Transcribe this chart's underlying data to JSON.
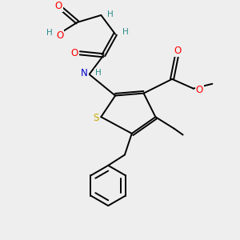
{
  "bg_color": "#eeeeee",
  "atom_colors": {
    "C": "#000000",
    "H": "#2e8b8b",
    "O": "#ff0000",
    "N": "#0000cd",
    "S": "#ccaa00"
  },
  "bond_color": "#000000",
  "bond_width": 1.4,
  "dbo": 0.08
}
